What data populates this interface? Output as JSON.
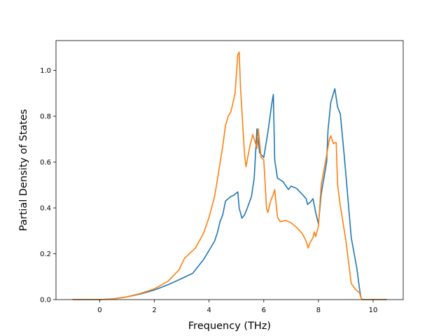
{
  "chart_data": {
    "type": "line",
    "title": "",
    "xlabel": "Frequency (THz)",
    "ylabel": "Partial Density of States",
    "xlim": [
      -1.6,
      11.1
    ],
    "ylim": [
      0.0,
      1.13
    ],
    "xticks": [
      "0",
      "2",
      "4",
      "6",
      "8",
      "10"
    ],
    "yticks": [
      "0.0",
      "0.2",
      "0.4",
      "0.6",
      "0.8",
      "1.0"
    ],
    "grid": false,
    "legend": "none",
    "series": [
      {
        "color": "#1f77b4",
        "x": [
          -1.0,
          0.0,
          0.5,
          1.0,
          1.5,
          2.0,
          2.5,
          3.0,
          3.4,
          3.8,
          4.0,
          4.2,
          4.3,
          4.4,
          4.5,
          4.6,
          4.8,
          4.9,
          5.0,
          5.05,
          5.1,
          5.2,
          5.3,
          5.4,
          5.55,
          5.65,
          5.75,
          5.85,
          6.0,
          6.15,
          6.3,
          6.35,
          6.4,
          6.5,
          6.7,
          6.9,
          7.0,
          7.2,
          7.4,
          7.55,
          7.6,
          7.7,
          7.8,
          7.9,
          8.0,
          8.1,
          8.3,
          8.35,
          8.45,
          8.6,
          8.7,
          8.8,
          8.95,
          9.05,
          9.2,
          9.4,
          9.5,
          9.55,
          9.6,
          10.5
        ],
        "y": [
          0.0,
          0.0,
          0.003,
          0.012,
          0.025,
          0.042,
          0.065,
          0.092,
          0.115,
          0.175,
          0.215,
          0.255,
          0.29,
          0.34,
          0.37,
          0.43,
          0.45,
          0.455,
          0.465,
          0.47,
          0.4,
          0.355,
          0.37,
          0.4,
          0.45,
          0.53,
          0.745,
          0.64,
          0.62,
          0.73,
          0.86,
          0.895,
          0.61,
          0.53,
          0.515,
          0.48,
          0.495,
          0.485,
          0.46,
          0.44,
          0.415,
          0.425,
          0.44,
          0.38,
          0.33,
          0.46,
          0.6,
          0.74,
          0.86,
          0.92,
          0.84,
          0.81,
          0.62,
          0.48,
          0.27,
          0.14,
          0.05,
          0.01,
          0.0,
          0.0
        ]
      },
      {
        "color": "#ff7f0e",
        "x": [
          -1.0,
          0.0,
          0.5,
          1.0,
          1.5,
          2.0,
          2.5,
          2.9,
          3.1,
          3.5,
          3.8,
          4.0,
          4.2,
          4.3,
          4.5,
          4.6,
          4.7,
          4.8,
          4.95,
          5.05,
          5.1,
          5.15,
          5.3,
          5.35,
          5.5,
          5.6,
          5.75,
          5.8,
          5.9,
          6.0,
          6.1,
          6.15,
          6.25,
          6.35,
          6.4,
          6.5,
          6.6,
          6.8,
          7.0,
          7.2,
          7.4,
          7.55,
          7.62,
          7.7,
          7.8,
          7.85,
          7.9,
          8.0,
          8.1,
          8.3,
          8.4,
          8.45,
          8.55,
          8.6,
          8.65,
          8.7,
          8.8,
          9.0,
          9.2,
          9.35,
          9.5,
          9.55,
          9.6,
          10.5
        ],
        "y": [
          0.0,
          0.0,
          0.003,
          0.012,
          0.027,
          0.047,
          0.08,
          0.13,
          0.18,
          0.225,
          0.29,
          0.36,
          0.45,
          0.52,
          0.67,
          0.76,
          0.8,
          0.82,
          0.9,
          1.07,
          1.08,
          0.92,
          0.63,
          0.58,
          0.675,
          0.72,
          0.66,
          0.745,
          0.62,
          0.61,
          0.4,
          0.38,
          0.43,
          0.46,
          0.48,
          0.36,
          0.34,
          0.345,
          0.335,
          0.315,
          0.29,
          0.255,
          0.225,
          0.25,
          0.27,
          0.295,
          0.275,
          0.32,
          0.5,
          0.63,
          0.7,
          0.715,
          0.68,
          0.685,
          0.685,
          0.5,
          0.41,
          0.26,
          0.07,
          0.045,
          0.03,
          0.01,
          0.0,
          0.0
        ]
      }
    ]
  }
}
